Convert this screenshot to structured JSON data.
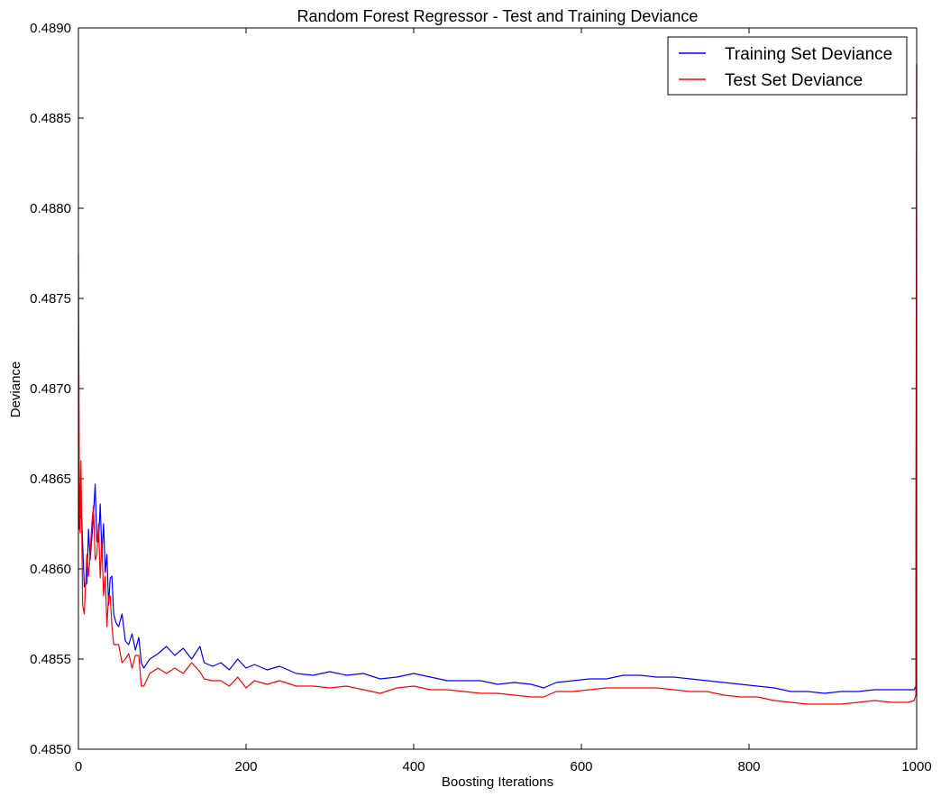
{
  "chart_data": {
    "type": "line",
    "title": "Random Forest Regressor - Test and Training Deviance",
    "xlabel": "Boosting Iterations",
    "ylabel": "Deviance",
    "xlim": [
      0,
      1000
    ],
    "ylim": [
      0.485,
      0.489
    ],
    "xticks": [
      "0",
      "200",
      "400",
      "600",
      "800",
      "1000"
    ],
    "yticks": [
      "0.4850",
      "0.4855",
      "0.4860",
      "0.4865",
      "0.4870",
      "0.4875",
      "0.4880",
      "0.4885",
      "0.4890"
    ],
    "grid": false,
    "legend_position": "top-right",
    "series": [
      {
        "name": "Training Set Deviance",
        "color": "#0000ff",
        "x": [
          0,
          1,
          2,
          4,
          7,
          10,
          12,
          14,
          16,
          18,
          20,
          22,
          24,
          26,
          28,
          30,
          32,
          34,
          36,
          38,
          40,
          42,
          45,
          48,
          52,
          56,
          60,
          64,
          68,
          72,
          75,
          78,
          85,
          95,
          105,
          115,
          125,
          135,
          145,
          150,
          160,
          170,
          180,
          190,
          200,
          210,
          225,
          240,
          260,
          280,
          300,
          320,
          340,
          360,
          380,
          400,
          420,
          440,
          460,
          480,
          500,
          520,
          540,
          555,
          570,
          590,
          610,
          630,
          650,
          670,
          690,
          710,
          730,
          750,
          770,
          790,
          810,
          830,
          850,
          870,
          890,
          910,
          930,
          950,
          970,
          990,
          997,
          999,
          1000
        ],
        "y": [
          0.4866,
          0.48622,
          0.4863,
          0.48628,
          0.4859,
          0.48592,
          0.48622,
          0.48605,
          0.48617,
          0.4863,
          0.48647,
          0.48615,
          0.48615,
          0.48636,
          0.48608,
          0.48625,
          0.48598,
          0.48608,
          0.4858,
          0.48595,
          0.48596,
          0.48575,
          0.4857,
          0.48568,
          0.48575,
          0.4856,
          0.48558,
          0.48564,
          0.48555,
          0.48562,
          0.48548,
          0.48545,
          0.4855,
          0.48553,
          0.48557,
          0.48552,
          0.48556,
          0.4855,
          0.48557,
          0.48548,
          0.48546,
          0.48548,
          0.48544,
          0.4855,
          0.48545,
          0.48547,
          0.48544,
          0.48546,
          0.48542,
          0.48541,
          0.48543,
          0.48541,
          0.48542,
          0.48539,
          0.4854,
          0.48542,
          0.4854,
          0.48538,
          0.48538,
          0.48538,
          0.48536,
          0.48537,
          0.48536,
          0.48534,
          0.48537,
          0.48538,
          0.48539,
          0.48539,
          0.48541,
          0.48541,
          0.4854,
          0.4854,
          0.48539,
          0.48538,
          0.48537,
          0.48536,
          0.48535,
          0.48534,
          0.48532,
          0.48532,
          0.48531,
          0.48532,
          0.48532,
          0.48533,
          0.48533,
          0.48533,
          0.48533,
          0.48535,
          0.4888
        ]
      },
      {
        "name": "Test Set Deviance",
        "color": "#ff0000",
        "x": [
          0,
          1,
          2,
          3,
          5,
          7,
          10,
          12,
          14,
          16,
          18,
          20,
          22,
          24,
          26,
          28,
          30,
          32,
          34,
          36,
          38,
          40,
          42,
          45,
          48,
          52,
          56,
          60,
          64,
          68,
          72,
          75,
          78,
          85,
          95,
          105,
          115,
          125,
          135,
          145,
          150,
          160,
          170,
          180,
          190,
          200,
          210,
          225,
          240,
          260,
          280,
          300,
          320,
          340,
          360,
          380,
          400,
          420,
          440,
          460,
          480,
          500,
          520,
          540,
          555,
          570,
          590,
          610,
          630,
          650,
          670,
          690,
          710,
          730,
          750,
          770,
          790,
          810,
          830,
          850,
          870,
          890,
          910,
          930,
          950,
          970,
          990,
          997,
          999,
          1000
        ],
        "y": [
          0.48775,
          0.4866,
          0.4862,
          0.4866,
          0.4858,
          0.48575,
          0.48608,
          0.48596,
          0.48608,
          0.48625,
          0.48635,
          0.48605,
          0.48608,
          0.48625,
          0.48595,
          0.48615,
          0.48585,
          0.48596,
          0.48568,
          0.48585,
          0.48585,
          0.48568,
          0.48558,
          0.48558,
          0.48558,
          0.48548,
          0.4855,
          0.48553,
          0.48545,
          0.48552,
          0.48552,
          0.48535,
          0.48535,
          0.48542,
          0.48545,
          0.48542,
          0.48545,
          0.48542,
          0.48548,
          0.48543,
          0.48539,
          0.48538,
          0.48538,
          0.48535,
          0.4854,
          0.48534,
          0.48538,
          0.48536,
          0.48538,
          0.48535,
          0.48535,
          0.48534,
          0.48535,
          0.48533,
          0.48531,
          0.48534,
          0.48535,
          0.48533,
          0.48533,
          0.48532,
          0.48531,
          0.48531,
          0.4853,
          0.48529,
          0.48529,
          0.48532,
          0.48532,
          0.48533,
          0.48534,
          0.48534,
          0.48534,
          0.48534,
          0.48533,
          0.48532,
          0.48532,
          0.4853,
          0.48529,
          0.48529,
          0.48527,
          0.48526,
          0.48525,
          0.48525,
          0.48525,
          0.48526,
          0.48527,
          0.48526,
          0.48526,
          0.48527,
          0.4853,
          0.4888
        ]
      }
    ]
  }
}
